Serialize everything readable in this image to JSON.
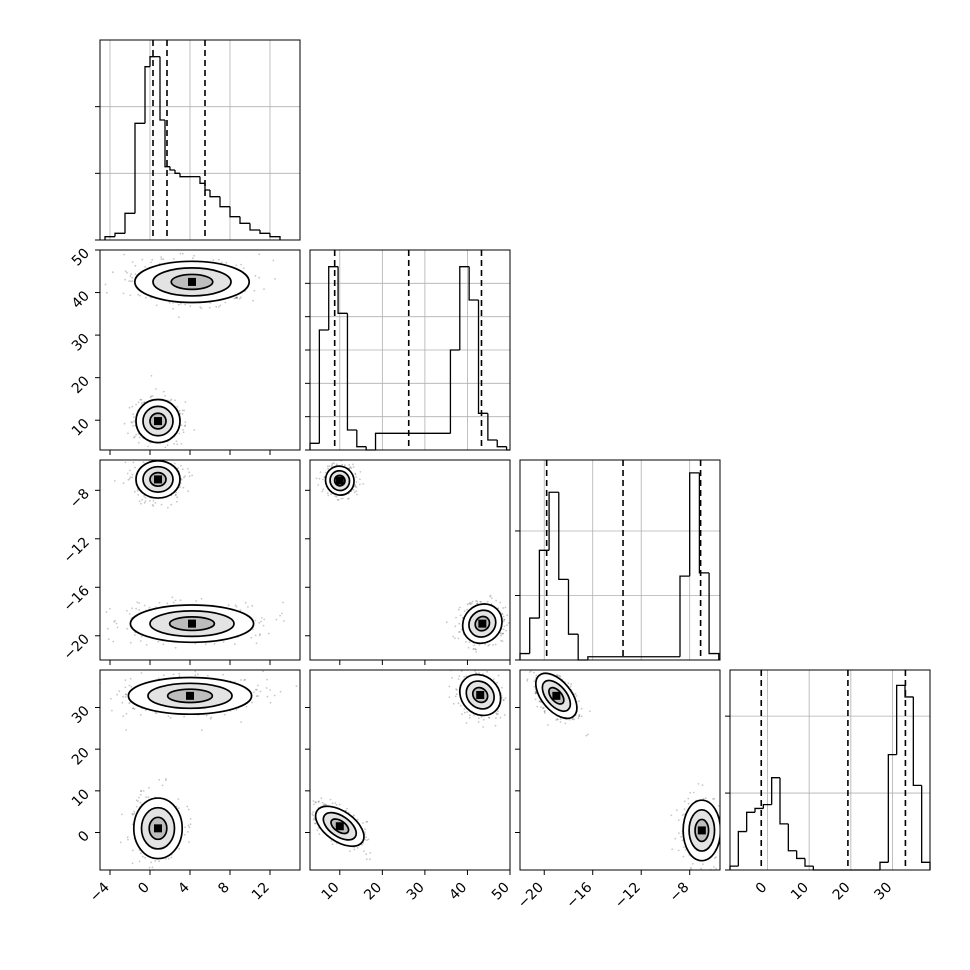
{
  "chart_data": {
    "type": "corner",
    "title": "",
    "grid": true,
    "parameters": [
      {
        "index": 0,
        "range": [
          -5,
          15
        ],
        "ticks": [
          -4,
          0,
          4,
          8,
          12
        ],
        "tick_labels": [
          "−4",
          "0",
          "4",
          "8",
          "12"
        ],
        "quantiles": [
          0.3,
          1.7,
          5.5
        ]
      },
      {
        "index": 1,
        "range": [
          3,
          50
        ],
        "ticks": [
          10,
          20,
          30,
          40,
          50
        ],
        "tick_labels": [
          "10",
          "20",
          "30",
          "40",
          "50"
        ],
        "quantiles": [
          8.8,
          26.2,
          43.3
        ]
      },
      {
        "index": 2,
        "range": [
          -22,
          -5.5
        ],
        "ticks": [
          -20,
          -16,
          -12,
          -8
        ],
        "tick_labels": [
          "−20",
          "−16",
          "−12",
          "−8"
        ],
        "quantiles": [
          -19.8,
          -13.5,
          -7.1
        ]
      },
      {
        "index": 3,
        "range": [
          -9,
          39
        ],
        "ticks": [
          0,
          10,
          20,
          30
        ],
        "tick_labels": [
          "0",
          "10",
          "20",
          "30"
        ],
        "quantiles": [
          -1.5,
          19.3,
          33.1
        ]
      }
    ],
    "histograms": [
      {
        "param": 0,
        "bin_edges": [
          -4.5,
          -3.5,
          -2.5,
          -1.5,
          -0.5,
          0,
          0.5,
          1.0,
          1.5,
          2.0,
          2.5,
          3.0,
          4.0,
          5.0,
          5.5,
          6.0,
          7.0,
          8.0,
          9.0,
          10.0,
          11.0,
          12.0,
          13.0
        ],
        "counts": [
          1,
          2,
          8,
          35,
          52,
          55,
          55,
          36,
          22,
          21,
          20,
          19,
          19,
          17,
          15,
          13,
          10,
          7,
          5,
          3,
          2,
          1
        ],
        "ymax": 60,
        "yticks": [
          0,
          20,
          40
        ]
      },
      {
        "param": 1,
        "bin_edges": [
          3,
          5.2,
          7.4,
          9.6,
          11.8,
          14,
          16.2,
          18.4,
          36,
          38.2,
          40.4,
          42.6,
          44.8,
          47,
          49.2,
          50
        ],
        "counts": [
          2,
          36,
          55,
          41,
          6,
          1,
          0,
          5,
          30,
          55,
          45,
          11,
          3,
          1,
          0
        ],
        "ymax": 60,
        "yticks": [
          0,
          10,
          20,
          30,
          40,
          50
        ]
      },
      {
        "param": 2,
        "bin_edges": [
          -22,
          -21.2,
          -20.4,
          -19.6,
          -18.8,
          -18,
          -17.2,
          -16.4,
          -8.8,
          -8.0,
          -7.2,
          -6.4,
          -5.6
        ],
        "counts": [
          2,
          13,
          34,
          52,
          25,
          8,
          0,
          1,
          26,
          58,
          27,
          2
        ],
        "ymax": 62,
        "yticks": [
          0,
          20,
          40
        ]
      },
      {
        "param": 3,
        "bin_edges": [
          -9,
          -7,
          -5,
          -3,
          -1,
          1,
          3,
          5,
          7,
          9,
          11,
          27,
          29,
          31,
          33,
          35,
          37,
          39
        ],
        "counts": [
          1,
          10,
          15,
          16,
          17,
          24,
          12,
          5,
          3,
          1,
          0,
          2,
          30,
          48,
          45,
          22,
          2
        ],
        "ymax": 52,
        "yticks": [
          0,
          20,
          40
        ]
      }
    ],
    "pairs": [
      {
        "x": 0,
        "y": 1,
        "clusters": [
          {
            "cx": 4.2,
            "cy": 42.5,
            "sx": 2.6,
            "sy": 2.2,
            "rot": 0,
            "n": 520
          },
          {
            "cx": 0.8,
            "cy": 9.8,
            "sx": 1.0,
            "sy": 2.3,
            "rot": 0,
            "n": 440
          }
        ]
      },
      {
        "x": 0,
        "y": 2,
        "clusters": [
          {
            "cx": 0.8,
            "cy": -7.1,
            "sx": 1.0,
            "sy": 0.7,
            "rot": 0,
            "n": 440
          },
          {
            "cx": 4.2,
            "cy": -19.0,
            "sx": 2.8,
            "sy": 0.7,
            "rot": 0,
            "n": 520
          }
        ]
      },
      {
        "x": 0,
        "y": 3,
        "clusters": [
          {
            "cx": 4.0,
            "cy": 32.8,
            "sx": 2.8,
            "sy": 2.0,
            "rot": 0,
            "n": 520
          },
          {
            "cx": 0.8,
            "cy": 1.0,
            "sx": 1.1,
            "sy": 3.3,
            "rot": 0,
            "n": 440
          }
        ]
      },
      {
        "x": 1,
        "y": 2,
        "clusters": [
          {
            "cx": 10.0,
            "cy": -7.2,
            "sx": 1.5,
            "sy": 0.55,
            "rot": -35,
            "n": 420
          },
          {
            "cx": 43.5,
            "cy": -19.0,
            "sx": 2.2,
            "sy": 0.7,
            "rot": -45,
            "n": 460
          }
        ]
      },
      {
        "x": 1,
        "y": 3,
        "clusters": [
          {
            "cx": 10.0,
            "cy": 1.5,
            "sx": 1.6,
            "sy": 3.0,
            "rot": -55,
            "n": 420
          },
          {
            "cx": 43.0,
            "cy": 33.0,
            "sx": 2.0,
            "sy": 2.4,
            "rot": -45,
            "n": 460
          }
        ]
      },
      {
        "x": 2,
        "y": 3,
        "clusters": [
          {
            "cx": -19.0,
            "cy": 32.8,
            "sx": 1.0,
            "sy": 1.6,
            "rot": 50,
            "n": 460
          },
          {
            "cx": -7.0,
            "cy": 0.5,
            "sx": 0.7,
            "sy": 3.3,
            "rot": 0,
            "n": 420
          }
        ]
      }
    ]
  }
}
